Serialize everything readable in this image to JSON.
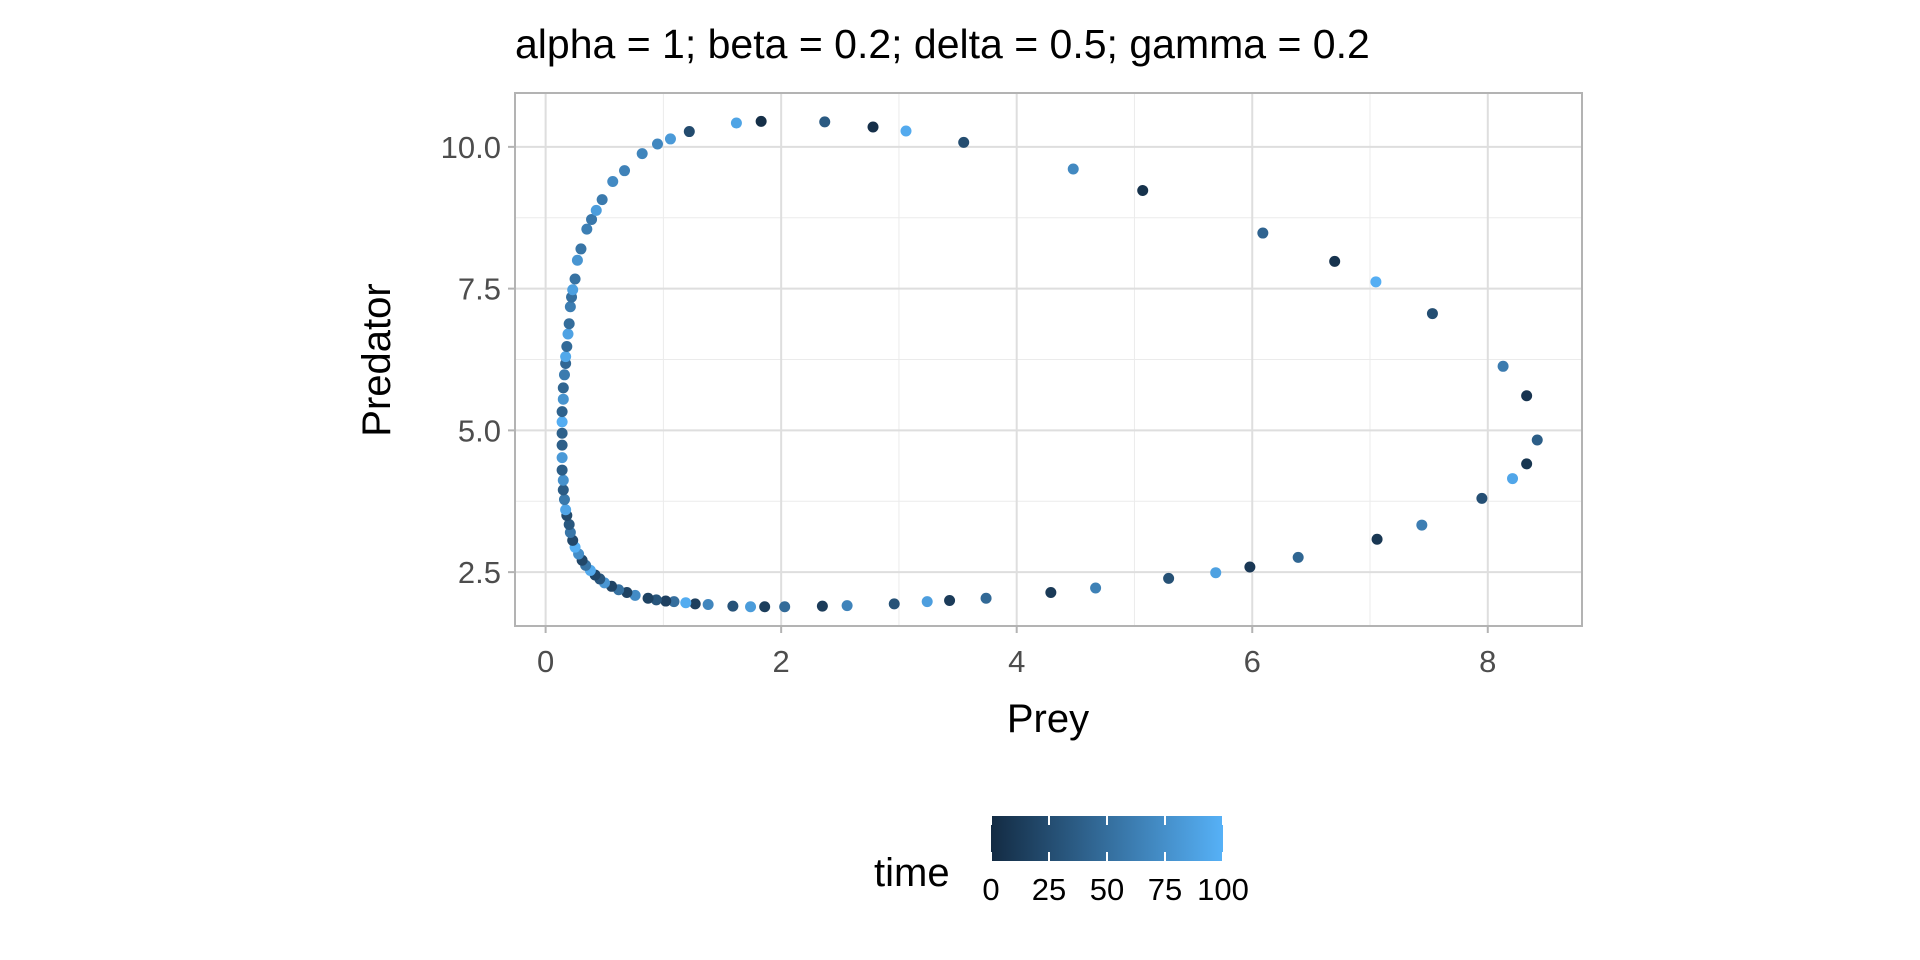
{
  "chart_data": {
    "type": "scatter",
    "title": "alpha = 1; beta = 0.2; delta = 0.5; gamma = 0.2",
    "xlabel": "Prey",
    "ylabel": "Predator",
    "xlim": [
      -0.26,
      8.8
    ],
    "ylim": [
      1.55,
      10.95
    ],
    "x_ticks": [
      0,
      2,
      4,
      6,
      8
    ],
    "x_tick_labels": [
      "0",
      "2",
      "4",
      "6",
      "8"
    ],
    "y_ticks": [
      2.5,
      5.0,
      7.5,
      10.0
    ],
    "y_tick_labels": [
      "2.5",
      "5.0",
      "7.5",
      "10.0"
    ],
    "grid": true,
    "legend": {
      "title": "time",
      "placement": "bottom",
      "color_low": "#132b43",
      "color_high": "#56b1f7",
      "range": [
        0,
        100
      ],
      "ticks": [
        0,
        25,
        50,
        75,
        100
      ],
      "tick_labels": [
        "0",
        "25",
        "50",
        "75",
        "100"
      ]
    },
    "points": [
      {
        "x": 1.22,
        "y": 10.27,
        "t": 24
      },
      {
        "x": 1.62,
        "y": 10.42,
        "t": 90
      },
      {
        "x": 1.83,
        "y": 10.45,
        "t": 3
      },
      {
        "x": 2.37,
        "y": 10.44,
        "t": 35
      },
      {
        "x": 2.78,
        "y": 10.35,
        "t": 4
      },
      {
        "x": 3.06,
        "y": 10.28,
        "t": 95
      },
      {
        "x": 3.55,
        "y": 10.08,
        "t": 25
      },
      {
        "x": 4.48,
        "y": 9.61,
        "t": 70
      },
      {
        "x": 5.07,
        "y": 9.23,
        "t": 5
      },
      {
        "x": 6.09,
        "y": 8.48,
        "t": 42
      },
      {
        "x": 6.7,
        "y": 7.98,
        "t": 6
      },
      {
        "x": 7.05,
        "y": 7.62,
        "t": 98
      },
      {
        "x": 7.53,
        "y": 7.06,
        "t": 26
      },
      {
        "x": 8.13,
        "y": 6.13,
        "t": 60
      },
      {
        "x": 8.33,
        "y": 5.61,
        "t": 7
      },
      {
        "x": 8.42,
        "y": 4.83,
        "t": 38
      },
      {
        "x": 8.33,
        "y": 4.41,
        "t": 8
      },
      {
        "x": 8.21,
        "y": 4.15,
        "t": 92
      },
      {
        "x": 7.95,
        "y": 3.8,
        "t": 27
      },
      {
        "x": 7.44,
        "y": 3.33,
        "t": 62
      },
      {
        "x": 7.06,
        "y": 3.08,
        "t": 9
      },
      {
        "x": 6.39,
        "y": 2.76,
        "t": 44
      },
      {
        "x": 5.98,
        "y": 2.59,
        "t": 10
      },
      {
        "x": 5.69,
        "y": 2.49,
        "t": 88
      },
      {
        "x": 5.29,
        "y": 2.39,
        "t": 28
      },
      {
        "x": 4.67,
        "y": 2.22,
        "t": 64
      },
      {
        "x": 4.29,
        "y": 2.14,
        "t": 11
      },
      {
        "x": 3.74,
        "y": 2.04,
        "t": 46
      },
      {
        "x": 3.43,
        "y": 2.0,
        "t": 12
      },
      {
        "x": 3.24,
        "y": 1.98,
        "t": 86
      },
      {
        "x": 2.96,
        "y": 1.94,
        "t": 29
      },
      {
        "x": 2.56,
        "y": 1.91,
        "t": 66
      },
      {
        "x": 2.35,
        "y": 1.9,
        "t": 13
      },
      {
        "x": 2.03,
        "y": 1.89,
        "t": 48
      },
      {
        "x": 1.86,
        "y": 1.89,
        "t": 14
      },
      {
        "x": 1.74,
        "y": 1.89,
        "t": 84
      },
      {
        "x": 1.59,
        "y": 1.9,
        "t": 30
      },
      {
        "x": 1.38,
        "y": 1.93,
        "t": 68
      },
      {
        "x": 1.27,
        "y": 1.94,
        "t": 15
      },
      {
        "x": 1.19,
        "y": 1.96,
        "t": 96
      },
      {
        "x": 1.09,
        "y": 1.98,
        "t": 50
      },
      {
        "x": 1.02,
        "y": 1.99,
        "t": 16
      },
      {
        "x": 0.94,
        "y": 2.01,
        "t": 31
      },
      {
        "x": 0.87,
        "y": 2.04,
        "t": 17
      },
      {
        "x": 0.76,
        "y": 2.09,
        "t": 72
      },
      {
        "x": 0.69,
        "y": 2.14,
        "t": 18
      },
      {
        "x": 0.62,
        "y": 2.19,
        "t": 52
      },
      {
        "x": 0.56,
        "y": 2.25,
        "t": 19
      },
      {
        "x": 0.5,
        "y": 2.31,
        "t": 80
      },
      {
        "x": 0.46,
        "y": 2.38,
        "t": 32
      },
      {
        "x": 0.42,
        "y": 2.45,
        "t": 20
      },
      {
        "x": 0.38,
        "y": 2.53,
        "t": 94
      },
      {
        "x": 0.34,
        "y": 2.62,
        "t": 54
      },
      {
        "x": 0.31,
        "y": 2.71,
        "t": 21
      },
      {
        "x": 0.28,
        "y": 2.82,
        "t": 74
      },
      {
        "x": 0.25,
        "y": 2.94,
        "t": 99
      },
      {
        "x": 0.23,
        "y": 3.06,
        "t": 22
      },
      {
        "x": 0.21,
        "y": 3.2,
        "t": 56
      },
      {
        "x": 0.2,
        "y": 3.34,
        "t": 33
      },
      {
        "x": 0.18,
        "y": 3.5,
        "t": 23
      },
      {
        "x": 0.17,
        "y": 3.6,
        "t": 91
      },
      {
        "x": 0.16,
        "y": 3.78,
        "t": 58
      },
      {
        "x": 0.15,
        "y": 3.95,
        "t": 36
      },
      {
        "x": 0.15,
        "y": 4.12,
        "t": 76
      },
      {
        "x": 0.14,
        "y": 4.3,
        "t": 37
      },
      {
        "x": 0.14,
        "y": 4.52,
        "t": 82
      },
      {
        "x": 0.14,
        "y": 4.74,
        "t": 39
      },
      {
        "x": 0.14,
        "y": 4.95,
        "t": 40
      },
      {
        "x": 0.14,
        "y": 5.15,
        "t": 97
      },
      {
        "x": 0.14,
        "y": 5.33,
        "t": 41
      },
      {
        "x": 0.15,
        "y": 5.55,
        "t": 78
      },
      {
        "x": 0.15,
        "y": 5.75,
        "t": 43
      },
      {
        "x": 0.16,
        "y": 5.98,
        "t": 60
      },
      {
        "x": 0.17,
        "y": 6.18,
        "t": 45
      },
      {
        "x": 0.17,
        "y": 6.3,
        "t": 93
      },
      {
        "x": 0.18,
        "y": 6.48,
        "t": 47
      },
      {
        "x": 0.19,
        "y": 6.7,
        "t": 89
      },
      {
        "x": 0.2,
        "y": 6.88,
        "t": 49
      },
      {
        "x": 0.21,
        "y": 7.18,
        "t": 61
      },
      {
        "x": 0.22,
        "y": 7.35,
        "t": 51
      },
      {
        "x": 0.23,
        "y": 7.48,
        "t": 87
      },
      {
        "x": 0.25,
        "y": 7.67,
        "t": 53
      },
      {
        "x": 0.27,
        "y": 8.0,
        "t": 79
      },
      {
        "x": 0.3,
        "y": 8.2,
        "t": 55
      },
      {
        "x": 0.35,
        "y": 8.55,
        "t": 63
      },
      {
        "x": 0.39,
        "y": 8.72,
        "t": 57
      },
      {
        "x": 0.43,
        "y": 8.88,
        "t": 85
      },
      {
        "x": 0.48,
        "y": 9.07,
        "t": 59
      },
      {
        "x": 0.57,
        "y": 9.39,
        "t": 71
      },
      {
        "x": 0.67,
        "y": 9.58,
        "t": 65
      },
      {
        "x": 0.82,
        "y": 9.88,
        "t": 67
      },
      {
        "x": 0.95,
        "y": 10.05,
        "t": 69
      },
      {
        "x": 1.06,
        "y": 10.14,
        "t": 83
      }
    ]
  }
}
